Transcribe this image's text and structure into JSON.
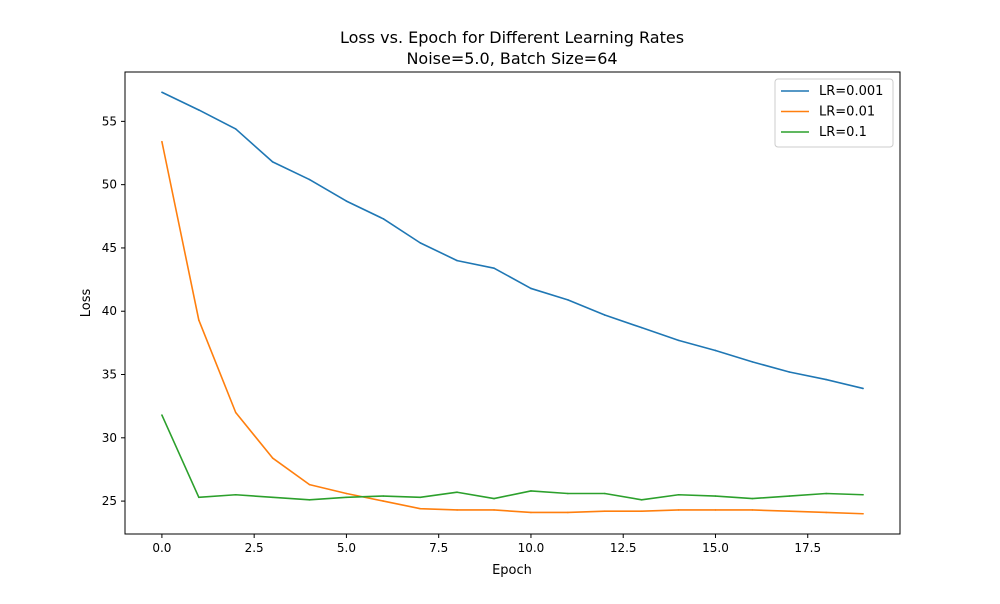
{
  "chart_data": {
    "type": "line",
    "title": "Loss vs. Epoch for Different Learning Rates",
    "subtitle": "Noise=5.0, Batch Size=64",
    "xlabel": "Epoch",
    "ylabel": "Loss",
    "xlim": [
      -1,
      20
    ],
    "ylim": [
      22.4,
      58.9
    ],
    "xticks": [
      0.0,
      2.5,
      5.0,
      7.5,
      10.0,
      12.5,
      15.0,
      17.5
    ],
    "xtick_labels": [
      "0.0",
      "2.5",
      "5.0",
      "7.5",
      "10.0",
      "12.5",
      "15.0",
      "17.5"
    ],
    "yticks": [
      25,
      30,
      35,
      40,
      45,
      50,
      55
    ],
    "ytick_labels": [
      "25",
      "30",
      "35",
      "40",
      "45",
      "50",
      "55"
    ],
    "grid": false,
    "legend_position": "top-right",
    "x": [
      0,
      1,
      2,
      3,
      4,
      5,
      6,
      7,
      8,
      9,
      10,
      11,
      12,
      13,
      14,
      15,
      16,
      17,
      18,
      19
    ],
    "series": [
      {
        "name": "LR=0.001",
        "color": "#1f77b4",
        "values": [
          57.3,
          55.9,
          54.4,
          51.8,
          50.4,
          48.7,
          47.3,
          45.4,
          44.0,
          43.4,
          41.8,
          40.9,
          39.7,
          38.7,
          37.7,
          36.9,
          36.0,
          35.2,
          34.6,
          33.9
        ]
      },
      {
        "name": "LR=0.01",
        "color": "#ff7f0e",
        "values": [
          53.4,
          39.3,
          32.0,
          28.4,
          26.3,
          25.6,
          25.0,
          24.4,
          24.3,
          24.3,
          24.1,
          24.1,
          24.2,
          24.2,
          24.3,
          24.3,
          24.3,
          24.2,
          24.1,
          24.0
        ]
      },
      {
        "name": "LR=0.1",
        "color": "#2ca02c",
        "values": [
          31.8,
          25.3,
          25.5,
          25.3,
          25.1,
          25.3,
          25.4,
          25.3,
          25.7,
          25.2,
          25.8,
          25.6,
          25.6,
          25.1,
          25.5,
          25.4,
          25.2,
          25.4,
          25.6,
          25.5
        ]
      }
    ]
  }
}
